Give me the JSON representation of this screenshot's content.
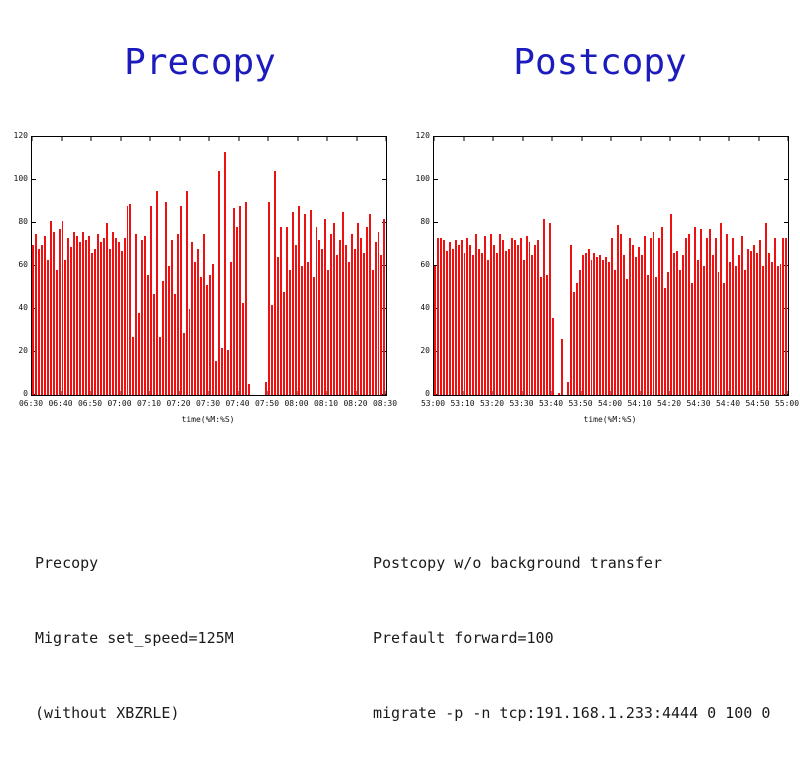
{
  "slide": {
    "background": "#ffffff",
    "title_color": "#1c1cbe",
    "text_color": "#1a1a1a",
    "left_title": "Precopy",
    "right_title": "Postcopy",
    "left_notes": [
      "Precopy",
      "Migrate set_speed=125M",
      "(without XBZRLE)"
    ],
    "right_notes": [
      "Postcopy w/o background transfer",
      "Prefault forward=100",
      "migrate -p -n tcp:191.168.1.233:4444 0 100 0"
    ]
  },
  "chart_data": [
    {
      "type": "bar",
      "title": "Precopy",
      "xlabel": "time(%M:%S)",
      "ylabel": "",
      "ylim": [
        0,
        120
      ],
      "yticks": [
        0,
        20,
        40,
        60,
        80,
        100,
        120
      ],
      "xtick_labels": [
        "06:30",
        "06:40",
        "06:50",
        "07:00",
        "07:10",
        "07:20",
        "07:30",
        "07:40",
        "07:50",
        "08:00",
        "08:10",
        "08:20",
        "08:30"
      ],
      "bar_color": "#ee1111",
      "grid": false,
      "legend": "none",
      "values": [
        70,
        75,
        68,
        70,
        74,
        63,
        81,
        76,
        58,
        77,
        81,
        63,
        73,
        69,
        76,
        74,
        71,
        76,
        72,
        74,
        66,
        68,
        75,
        71,
        73,
        80,
        68,
        76,
        73,
        71,
        67,
        73,
        88,
        89,
        27,
        75,
        38,
        72,
        74,
        56,
        88,
        47,
        95,
        27,
        53,
        90,
        60,
        72,
        47,
        75,
        88,
        29,
        95,
        40,
        71,
        62,
        68,
        55,
        75,
        51,
        56,
        61,
        16,
        104,
        22,
        113,
        21,
        62,
        87,
        78,
        88,
        43,
        90,
        5,
        0,
        0,
        0,
        0,
        0,
        6,
        90,
        42,
        104,
        64,
        78,
        48,
        78,
        58,
        85,
        70,
        88,
        60,
        84,
        62,
        86,
        55,
        78,
        72,
        68,
        82,
        58,
        75,
        80,
        65,
        72,
        85,
        70,
        62,
        75,
        68,
        80,
        73,
        66,
        78,
        84,
        58,
        71,
        76,
        65,
        82
      ]
    },
    {
      "type": "bar",
      "title": "Postcopy",
      "xlabel": "time(%M:%S)",
      "ylabel": "",
      "ylim": [
        0,
        120
      ],
      "yticks": [
        0,
        20,
        40,
        60,
        80,
        100,
        120
      ],
      "xtick_labels": [
        "53:00",
        "53:10",
        "53:20",
        "53:30",
        "53:40",
        "53:50",
        "54:00",
        "54:10",
        "54:20",
        "54:30",
        "54:40",
        "54:50",
        "55:00"
      ],
      "bar_color": "#ee1111",
      "grid": false,
      "legend": "none",
      "values": [
        60,
        73,
        73,
        72,
        67,
        71,
        68,
        72,
        70,
        72,
        66,
        73,
        70,
        65,
        75,
        68,
        66,
        74,
        63,
        75,
        70,
        66,
        75,
        72,
        67,
        68,
        73,
        72,
        70,
        73,
        63,
        74,
        71,
        65,
        70,
        72,
        55,
        82,
        56,
        80,
        36,
        0,
        1,
        26,
        0,
        6,
        70,
        48,
        52,
        58,
        65,
        66,
        68,
        63,
        66,
        64,
        65,
        63,
        64,
        62,
        73,
        58,
        79,
        75,
        65,
        54,
        73,
        70,
        64,
        69,
        65,
        74,
        56,
        73,
        76,
        55,
        73,
        78,
        50,
        57,
        84,
        66,
        67,
        58,
        65,
        73,
        75,
        52,
        78,
        63,
        77,
        60,
        73,
        77,
        65,
        73,
        57,
        80,
        52,
        75,
        62,
        73,
        60,
        65,
        74,
        58,
        68,
        67,
        70,
        66,
        72,
        60,
        80,
        66,
        62,
        73,
        60,
        61,
        73,
        73
      ]
    }
  ]
}
